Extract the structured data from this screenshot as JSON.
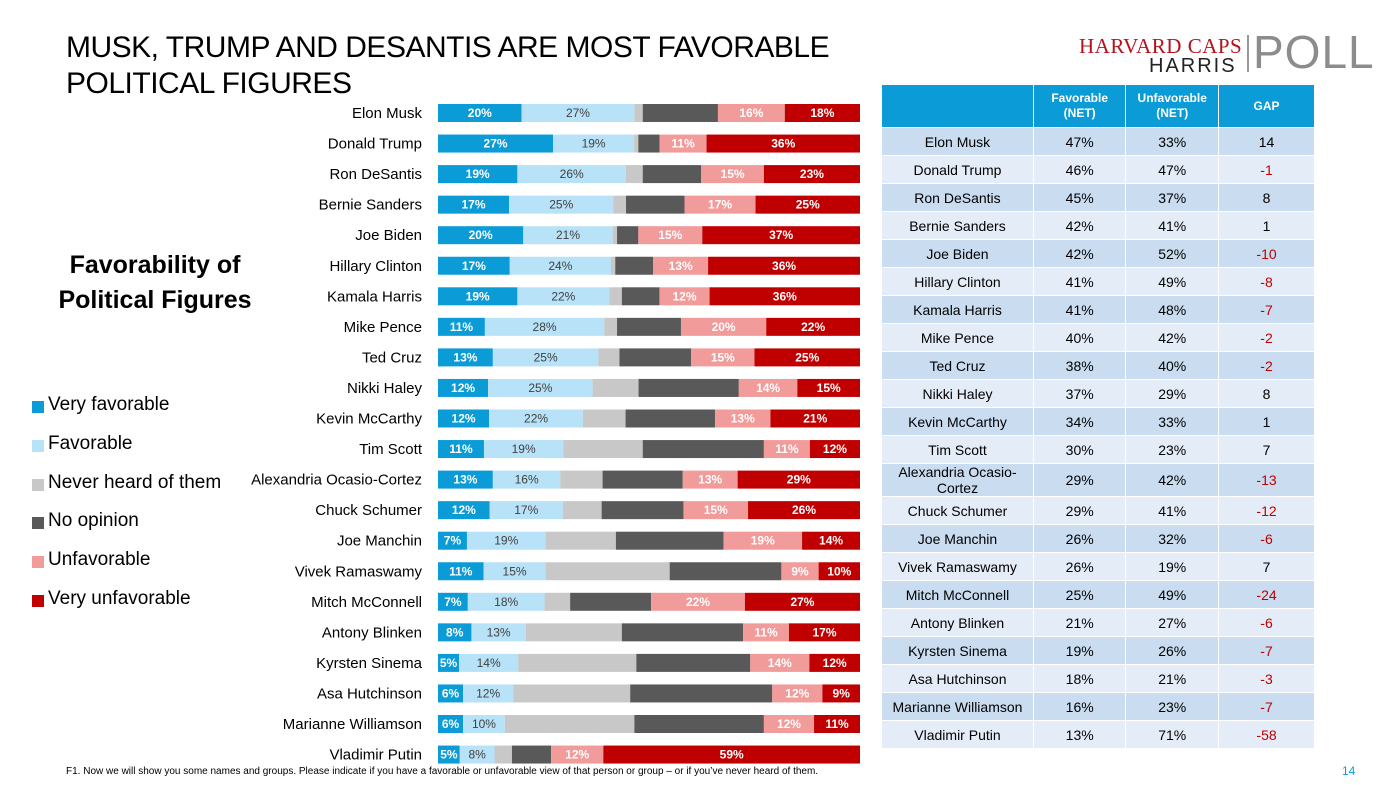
{
  "title": "MUSK, TRUMP AND DESANTIS ARE MOST FAVORABLE POLITICAL FIGURES",
  "logo": {
    "line1": "HARVARD CAPS",
    "line2": "HARRIS",
    "word": "POLL"
  },
  "subtitle": "Favorability of Political Figures",
  "legend": [
    {
      "label": "Very favorable",
      "color": "#0b9bd7"
    },
    {
      "label": "Favorable",
      "color": "#b8e2f7"
    },
    {
      "label": "Never heard of them",
      "color": "#c8c8c8"
    },
    {
      "label": "No opinion",
      "color": "#595959"
    },
    {
      "label": "Unfavorable",
      "color": "#f29b9b"
    },
    {
      "label": "Very unfavorable",
      "color": "#c00000"
    }
  ],
  "chart_data": {
    "type": "bar",
    "orientation": "horizontal",
    "stacked": true,
    "title": "Favorability of Political Figures",
    "categories": [
      "Elon Musk",
      "Donald Trump",
      "Ron DeSantis",
      "Bernie Sanders",
      "Joe Biden",
      "Hillary Clinton",
      "Kamala Harris",
      "Mike Pence",
      "Ted Cruz",
      "Nikki Haley",
      "Kevin McCarthy",
      "Tim Scott",
      "Alexandria Ocasio-Cortez",
      "Chuck Schumer",
      "Joe Manchin",
      "Vivek Ramaswamy",
      "Mitch McConnell",
      "Antony Blinken",
      "Kyrsten Sinema",
      "Asa Hutchinson",
      "Marianne Williamson",
      "Vladimir Putin"
    ],
    "series": [
      {
        "name": "Very favorable",
        "values": [
          20,
          27,
          19,
          17,
          20,
          17,
          19,
          11,
          13,
          12,
          12,
          11,
          13,
          12,
          7,
          11,
          7,
          8,
          5,
          6,
          6,
          5
        ]
      },
      {
        "name": "Favorable",
        "values": [
          27,
          19,
          26,
          25,
          21,
          24,
          22,
          28,
          25,
          25,
          22,
          19,
          16,
          17,
          19,
          15,
          18,
          13,
          14,
          12,
          10,
          8
        ]
      },
      {
        "name": "Never heard of them",
        "values": [
          2,
          1,
          4,
          3,
          1,
          1,
          3,
          3,
          5,
          11,
          10,
          19,
          10,
          9,
          17,
          30,
          6,
          23,
          28,
          28,
          31,
          4
        ]
      },
      {
        "name": "No opinion",
        "values": [
          18,
          5,
          14,
          14,
          5,
          9,
          9,
          15,
          17,
          24,
          21,
          29,
          19,
          19,
          26,
          27,
          19,
          29,
          27,
          34,
          31,
          9
        ]
      },
      {
        "name": "Unfavorable",
        "values": [
          16,
          11,
          15,
          17,
          15,
          13,
          12,
          20,
          15,
          14,
          13,
          11,
          13,
          15,
          19,
          9,
          22,
          11,
          14,
          12,
          12,
          12
        ]
      },
      {
        "name": "Very unfavorable",
        "values": [
          18,
          36,
          23,
          25,
          37,
          36,
          36,
          22,
          25,
          15,
          21,
          12,
          29,
          26,
          14,
          10,
          27,
          17,
          12,
          9,
          11,
          59
        ]
      }
    ],
    "xlim": [
      0,
      100
    ]
  },
  "table": {
    "headers": [
      "",
      "Favorable (NET)",
      "Unfavorable (NET)",
      "GAP"
    ],
    "rows": [
      {
        "name": "Elon Musk",
        "fav": "47%",
        "unfav": "33%",
        "gap": "14"
      },
      {
        "name": "Donald Trump",
        "fav": "46%",
        "unfav": "47%",
        "gap": "-1"
      },
      {
        "name": "Ron DeSantis",
        "fav": "45%",
        "unfav": "37%",
        "gap": "8"
      },
      {
        "name": "Bernie Sanders",
        "fav": "42%",
        "unfav": "41%",
        "gap": "1"
      },
      {
        "name": "Joe Biden",
        "fav": "42%",
        "unfav": "52%",
        "gap": "-10"
      },
      {
        "name": "Hillary Clinton",
        "fav": "41%",
        "unfav": "49%",
        "gap": "-8"
      },
      {
        "name": "Kamala Harris",
        "fav": "41%",
        "unfav": "48%",
        "gap": "-7"
      },
      {
        "name": "Mike Pence",
        "fav": "40%",
        "unfav": "42%",
        "gap": "-2"
      },
      {
        "name": "Ted Cruz",
        "fav": "38%",
        "unfav": "40%",
        "gap": "-2"
      },
      {
        "name": "Nikki Haley",
        "fav": "37%",
        "unfav": "29%",
        "gap": "8"
      },
      {
        "name": "Kevin McCarthy",
        "fav": "34%",
        "unfav": "33%",
        "gap": "1"
      },
      {
        "name": "Tim Scott",
        "fav": "30%",
        "unfav": "23%",
        "gap": "7"
      },
      {
        "name": "Alexandria Ocasio-Cortez",
        "fav": "29%",
        "unfav": "42%",
        "gap": "-13"
      },
      {
        "name": "Chuck Schumer",
        "fav": "29%",
        "unfav": "41%",
        "gap": "-12"
      },
      {
        "name": "Joe Manchin",
        "fav": "26%",
        "unfav": "32%",
        "gap": "-6"
      },
      {
        "name": "Vivek Ramaswamy",
        "fav": "26%",
        "unfav": "19%",
        "gap": "7"
      },
      {
        "name": "Mitch McConnell",
        "fav": "25%",
        "unfav": "49%",
        "gap": "-24"
      },
      {
        "name": "Antony Blinken",
        "fav": "21%",
        "unfav": "27%",
        "gap": "-6"
      },
      {
        "name": "Kyrsten Sinema",
        "fav": "19%",
        "unfav": "26%",
        "gap": "-7"
      },
      {
        "name": "Asa Hutchinson",
        "fav": "18%",
        "unfav": "21%",
        "gap": "-3"
      },
      {
        "name": "Marianne Williamson",
        "fav": "16%",
        "unfav": "23%",
        "gap": "-7"
      },
      {
        "name": "Vladimir Putin",
        "fav": "13%",
        "unfav": "71%",
        "gap": "-58"
      }
    ]
  },
  "footnote": "F1.  Now we will show you some names and groups. Please indicate if you have a favorable or unfavorable view of that person or group – or if you’ve never heard of them.",
  "page_number": "14"
}
